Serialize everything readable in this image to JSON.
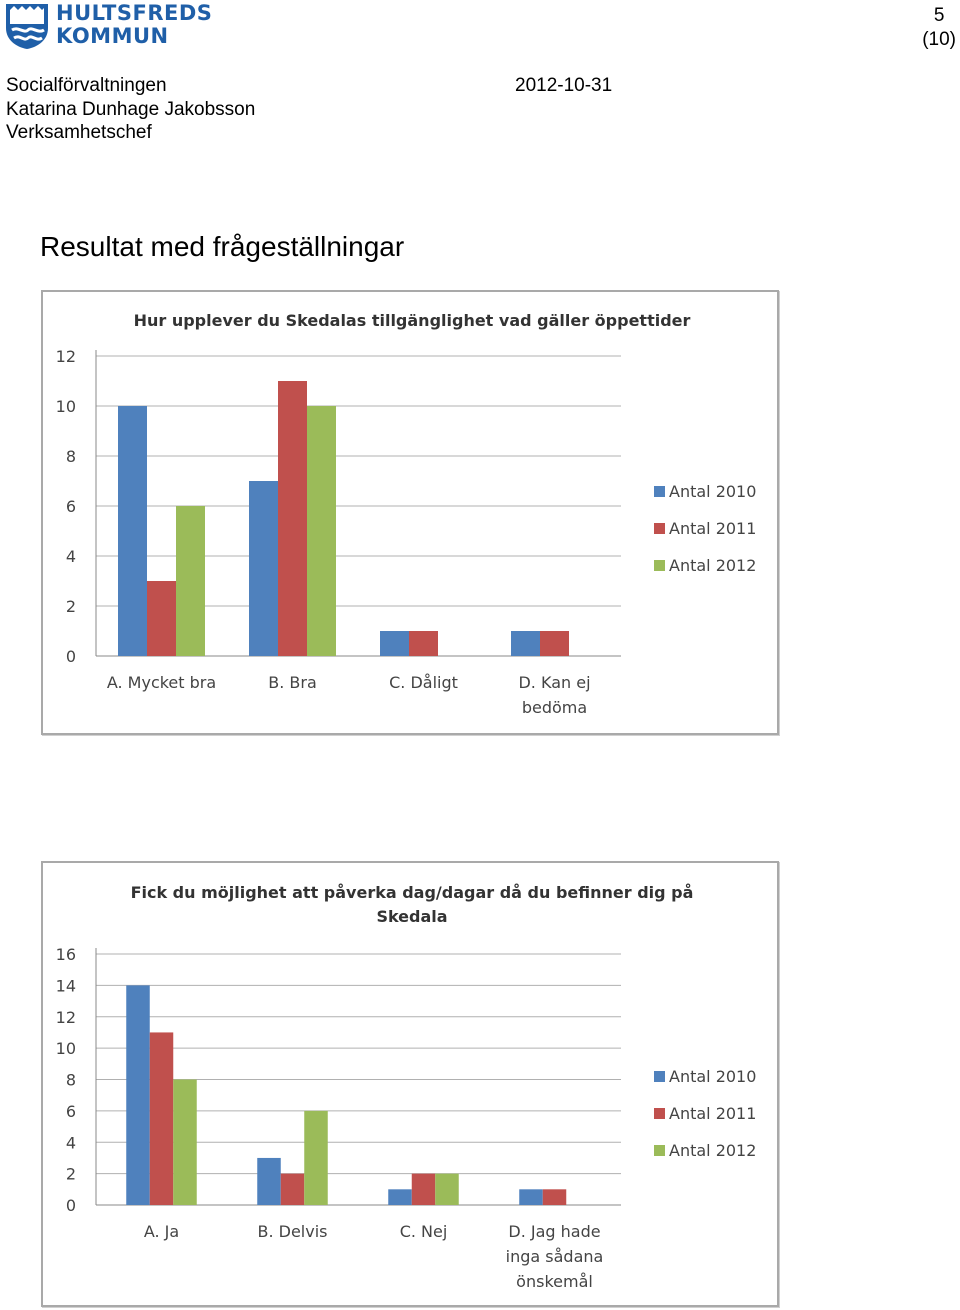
{
  "header": {
    "logo_line1": "HULTSFREDS",
    "logo_line2": "KOMMUN",
    "page_number": "5",
    "page_total": "(10)",
    "department": "Socialförvaltningen",
    "author": "Katarina Dunhage Jakobsson",
    "role": "Verksamhetschef",
    "date": "2012-10-31"
  },
  "section_title": "Resultat med frågeställningar",
  "colors": {
    "series_2010": "#4f81bd",
    "series_2011": "#c0504d",
    "series_2012": "#9bbb59",
    "logo_blue": "#1f5fa8"
  },
  "chart_data": [
    {
      "type": "bar",
      "title": [
        "Hur upplever du Skedalas tillgänglighet vad gäller öppettider"
      ],
      "categories": [
        [
          "A. Mycket bra"
        ],
        [
          "B. Bra"
        ],
        [
          "C. Dåligt"
        ],
        [
          "D. Kan ej",
          "bedöma"
        ]
      ],
      "series": [
        {
          "name": "Antal 2010",
          "values": [
            10,
            7,
            1,
            1
          ]
        },
        {
          "name": "Antal 2011",
          "values": [
            3,
            11,
            1,
            1
          ]
        },
        {
          "name": "Antal 2012",
          "values": [
            6,
            10,
            0,
            0
          ]
        }
      ],
      "ylim": [
        0,
        12
      ],
      "yticks": [
        0,
        2,
        4,
        6,
        8,
        10,
        12
      ],
      "grid": true,
      "legend": "right"
    },
    {
      "type": "bar",
      "title": [
        "Fick du möjlighet att påverka dag/dagar då du befinner dig på",
        "Skedala"
      ],
      "categories": [
        [
          "A. Ja"
        ],
        [
          "B. Delvis"
        ],
        [
          "C. Nej"
        ],
        [
          "D. Jag hade",
          "inga sådana",
          "önskemål"
        ]
      ],
      "series": [
        {
          "name": "Antal 2010",
          "values": [
            14,
            3,
            1,
            1
          ]
        },
        {
          "name": "Antal 2011",
          "values": [
            11,
            2,
            2,
            1
          ]
        },
        {
          "name": "Antal 2012",
          "values": [
            8,
            6,
            2,
            0
          ]
        }
      ],
      "ylim": [
        0,
        16
      ],
      "yticks": [
        0,
        2,
        4,
        6,
        8,
        10,
        12,
        14,
        16
      ],
      "grid": true,
      "legend": "right"
    }
  ]
}
